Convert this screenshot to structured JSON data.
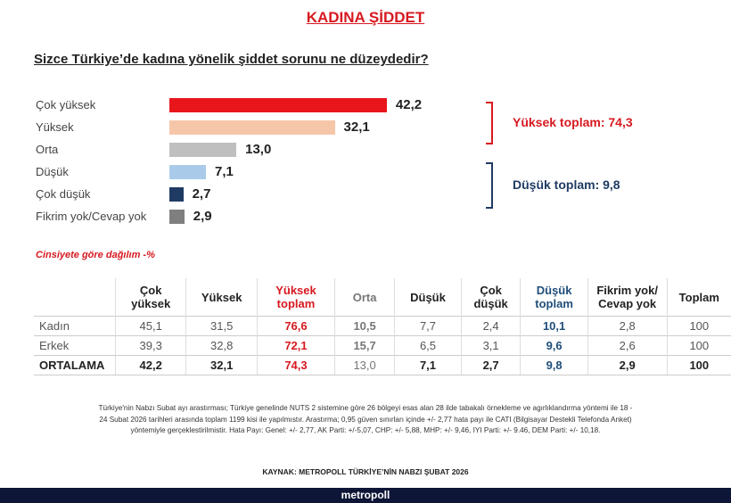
{
  "title": "KADINA ŞİDDET",
  "question": "Sizce Türkiye’de kadına yönelik şiddet sorunu ne düzeydedir?",
  "chart_data": {
    "type": "bar",
    "orientation": "horizontal",
    "categories": [
      "Çok yüksek",
      "Yüksek",
      "Orta",
      "Düşük",
      "Çok düşük",
      "Fikrim yok/Cevap yok"
    ],
    "values": [
      42.2,
      32.1,
      13.0,
      7.1,
      2.7,
      2.9
    ],
    "value_labels": [
      "42,2",
      "32,1",
      "13,0",
      "7,1",
      "2,7",
      "2,9"
    ],
    "colors": [
      "#e8161b",
      "#f6c6a9",
      "#c0bfbf",
      "#a9cbe9",
      "#1f3b63",
      "#7f7f7f"
    ],
    "annotations": [
      {
        "text": "Yüksek toplam: 74,3",
        "color": "#d71920"
      },
      {
        "text": "Düşük toplam: 9,8",
        "color": "#1f3b63"
      }
    ]
  },
  "table": {
    "caption": "Cinsiyete göre dağılım -%",
    "headers": [
      "",
      "Çok yüksek",
      "Yüksek",
      "Yüksek toplam",
      "Orta",
      "Düşük",
      "Çok düşük",
      "Düşük toplam",
      "Fikrim yok/ Cevap yok",
      "Toplam"
    ],
    "rows": [
      [
        "Kadın",
        "45,1",
        "31,5",
        "76,6",
        "10,5",
        "7,7",
        "2,4",
        "10,1",
        "2,8",
        "100"
      ],
      [
        "Erkek",
        "39,3",
        "32,8",
        "72,1",
        "15,7",
        "6,5",
        "3,1",
        "9,6",
        "2,6",
        "100"
      ],
      [
        "ORTALAMA",
        "42,2",
        "32,1",
        "74,3",
        "13,0",
        "7,1",
        "2,7",
        "9,8",
        "2,9",
        "100"
      ]
    ]
  },
  "note": "Türkiye'nin Nabzı Subat ayı arastırması; Türkiye genelinde NUTS 2 sistemine göre 26 bölgeyi esas alan 28 ilde tabakalı örnekleme ve agırlıklandırma yöntemi ile 18 - 24 Subat 2026 tarihleri arasında toplam 1199 kisi ile yapılmıstır. Arastırma; 0,95 güven sınırları içinde +/- 2,77 hata payı ile CATI (Bilgisayar Destekli Telefonda Anket) yöntemiyle gerçeklestirilmistir. Hata Payı: Genel: +/- 2,77, AK Parti: +/-5,07, CHP: +/- 5,88, MHP: +/- 9,46, IYI Parti: +/- 9.46, DEM Parti: +/- 10,18.",
  "source": "KAYNAK: METROPOLL TÜRKİYE’NİN NABZI ŞUBAT 2026",
  "brand": "metropoll"
}
